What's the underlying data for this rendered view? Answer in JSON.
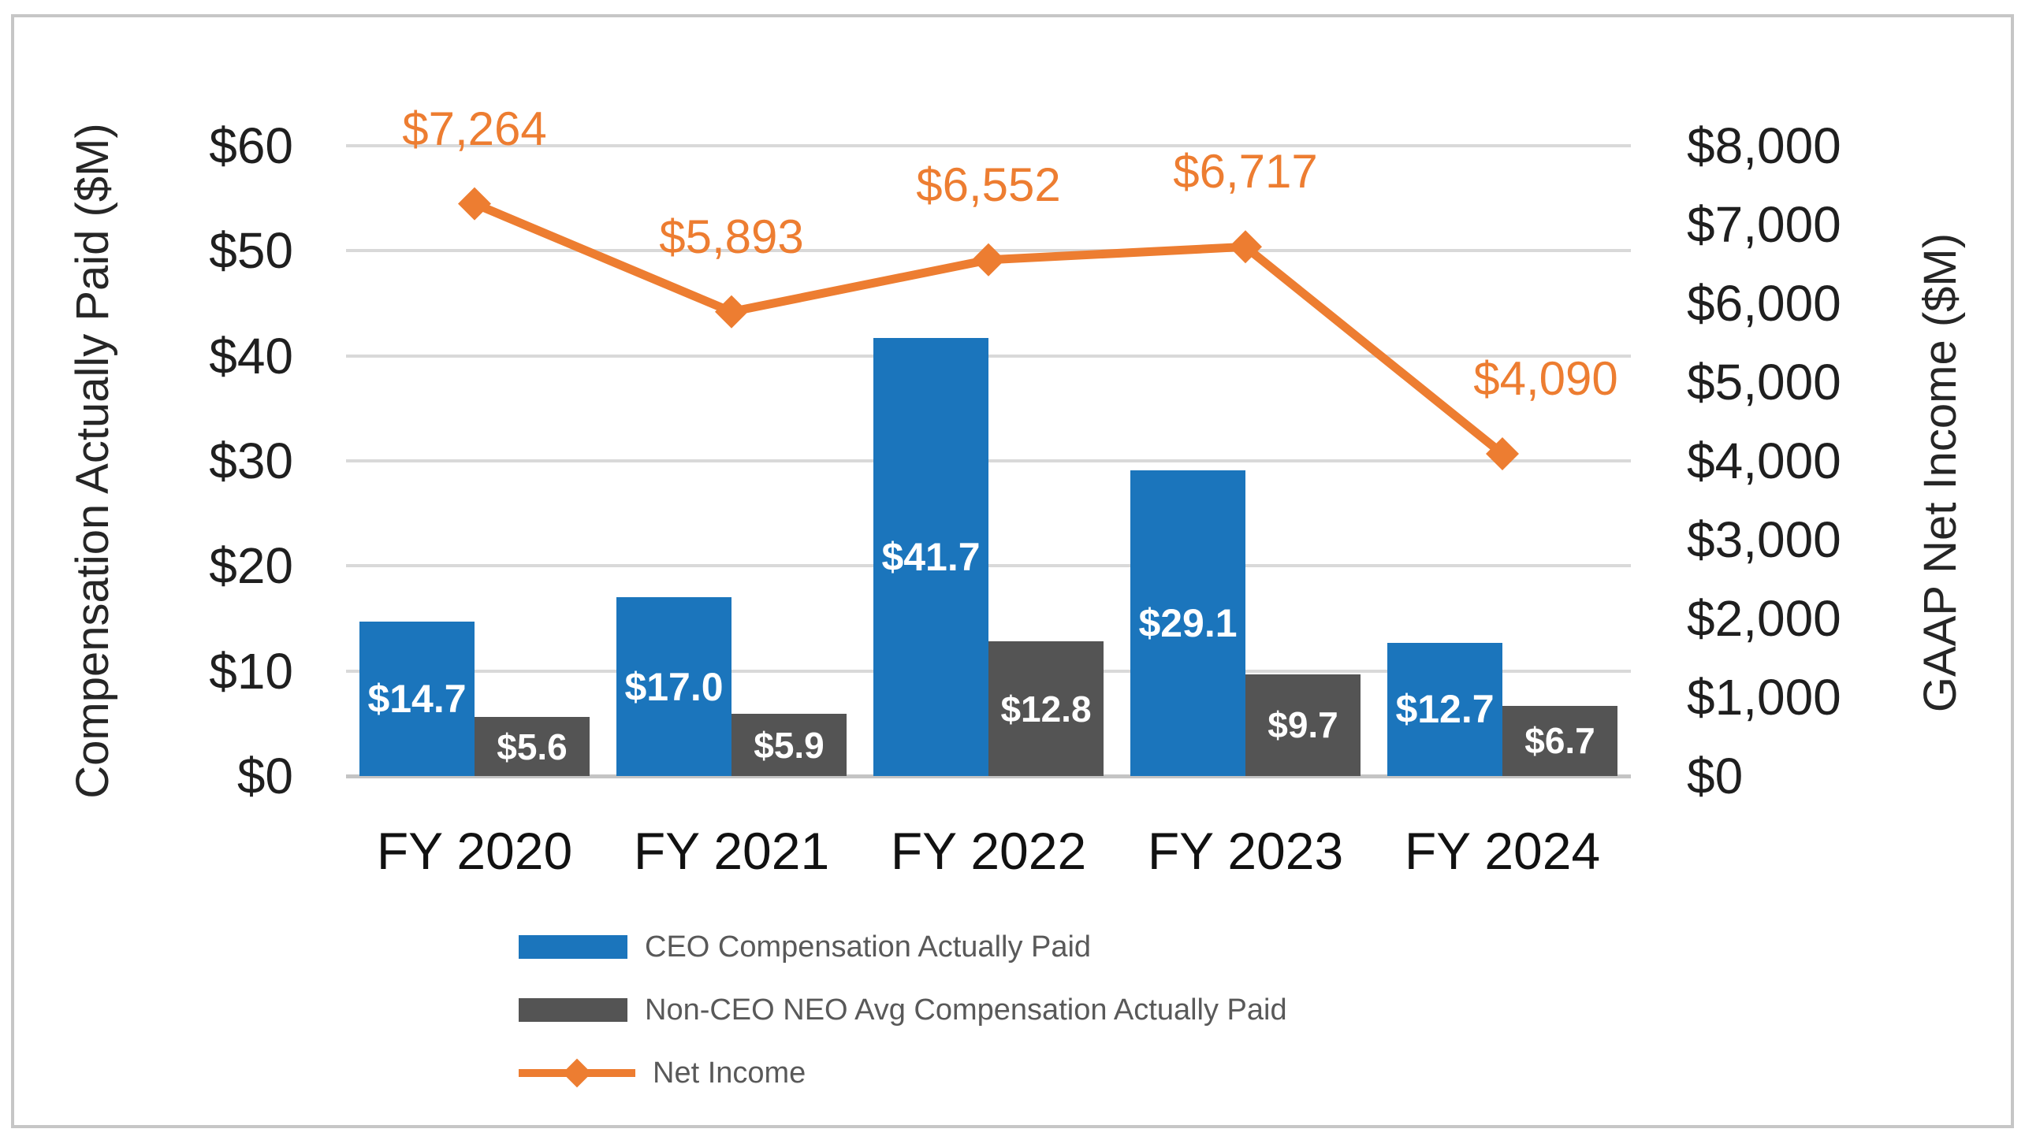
{
  "chart_data": {
    "type": "bar+line combo",
    "title": "",
    "categories": [
      "FY 2020",
      "FY 2021",
      "FY 2022",
      "FY 2023",
      "FY 2024"
    ],
    "series": [
      {
        "name": "CEO Compensation Actually Paid",
        "type": "bar",
        "axis": "left",
        "color": "#1B75BC",
        "values": [
          14.7,
          17.0,
          41.7,
          29.1,
          12.7
        ],
        "labels": [
          "$14.7",
          "$17.0",
          "$41.7",
          "$29.1",
          "$12.7"
        ],
        "label_color": "#FFFFFF"
      },
      {
        "name": "Non-CEO NEO Avg Compensation Actually Paid",
        "type": "bar",
        "axis": "left",
        "color": "#545454",
        "values": [
          5.6,
          5.9,
          12.8,
          9.7,
          6.7
        ],
        "labels": [
          "$5.6",
          "$5.9",
          "$12.8",
          "$9.7",
          "$6.7"
        ],
        "label_color": "#FFFFFF"
      },
      {
        "name": "Net Income",
        "type": "line",
        "axis": "right",
        "color": "#ED7D31",
        "marker": "diamond",
        "values": [
          7264,
          5893,
          6552,
          6717,
          4090
        ],
        "labels": [
          "$7,264",
          "$5,893",
          "$6,552",
          "$6,717",
          "$4,090"
        ],
        "label_color": "#ED7D31"
      }
    ],
    "left_axis": {
      "title": "Compensation Actually Paid ($M)",
      "min": 0,
      "max": 60,
      "ticks": [
        {
          "value": 60,
          "label": "$60"
        },
        {
          "value": 50,
          "label": "$50"
        },
        {
          "value": 40,
          "label": "$40"
        },
        {
          "value": 30,
          "label": "$30"
        },
        {
          "value": 20,
          "label": "$20"
        },
        {
          "value": 10,
          "label": "$10"
        },
        {
          "value": 0,
          "label": "$0"
        }
      ]
    },
    "right_axis": {
      "title": "GAAP Net Income ($M)",
      "min": 0,
      "max": 8000,
      "ticks": [
        {
          "value": 8000,
          "label": "$8,000"
        },
        {
          "value": 7000,
          "label": "$7,000"
        },
        {
          "value": 6000,
          "label": "$6,000"
        },
        {
          "value": 5000,
          "label": "$5,000"
        },
        {
          "value": 4000,
          "label": "$4,000"
        },
        {
          "value": 3000,
          "label": "$3,000"
        },
        {
          "value": 2000,
          "label": "$2,000"
        },
        {
          "value": 1000,
          "label": "$1,000"
        },
        {
          "value": 0,
          "label": "$0"
        }
      ]
    },
    "legend_position": "bottom-left",
    "grid": true,
    "gridline_color": "#D9D9D9",
    "axis_line_color": "#C4C4C4",
    "frame_border_color": "#C6C6C6",
    "background_color": "#FFFFFF"
  }
}
